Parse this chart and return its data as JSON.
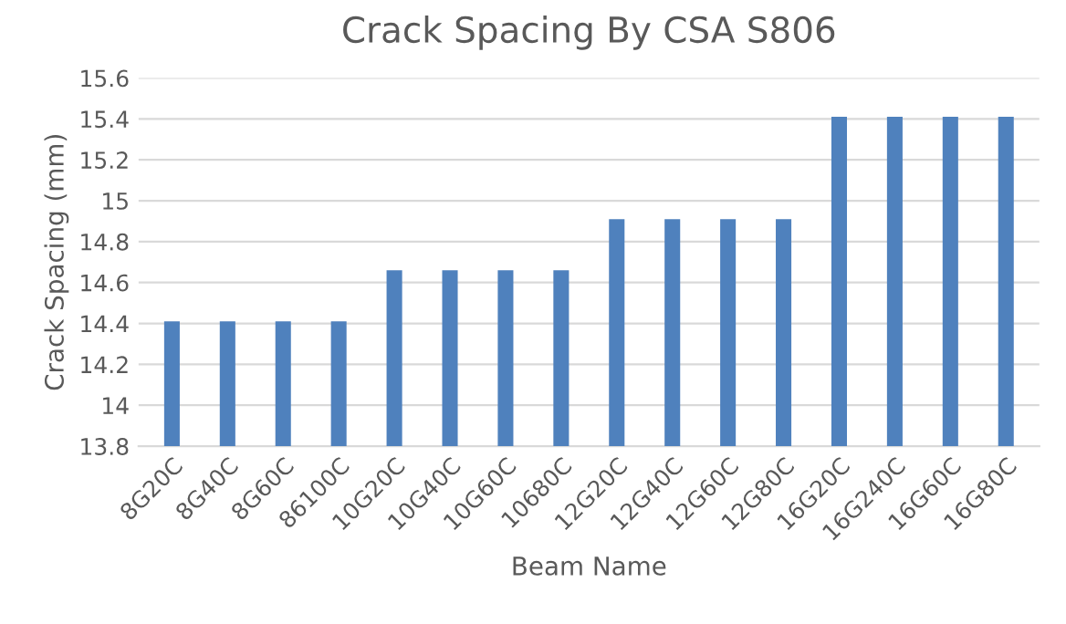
{
  "chart_data": {
    "type": "bar",
    "title": "Crack Spacing By CSA S806",
    "xlabel": "Beam Name",
    "ylabel": "Crack Spacing (mm)",
    "categories": [
      "8G20C",
      "8G40C",
      "8G60C",
      "86100C",
      "10G20C",
      "10G40C",
      "10G60C",
      "10680C",
      "12G20C",
      "12G40C",
      "12G60C",
      "12G80C",
      "16G20C",
      "16G240C",
      "16G60C",
      "16G80C"
    ],
    "values": [
      14.41,
      14.41,
      14.41,
      14.41,
      14.66,
      14.66,
      14.66,
      14.66,
      14.91,
      14.91,
      14.91,
      14.91,
      15.41,
      15.41,
      15.41,
      15.41
    ],
    "color": "#4f81bd",
    "ylim": [
      13.8,
      15.6
    ],
    "yticks": [
      13.8,
      14.2,
      14.4,
      14.6,
      14.8,
      {
        "value": 14,
        "label": "14"
      },
      15.2,
      15.4,
      15.6,
      {
        "value": 15,
        "label": "15"
      }
    ],
    "grid": "y",
    "legend": false
  }
}
